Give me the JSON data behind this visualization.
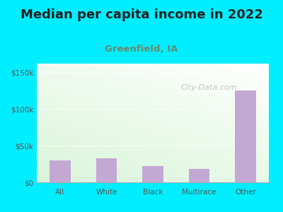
{
  "title": "Median per capita income in 2022",
  "subtitle": "Greenfield, IA",
  "categories": [
    "All",
    "White",
    "Black",
    "Multirace",
    "Other"
  ],
  "values": [
    30000,
    33000,
    22000,
    18000,
    125000
  ],
  "bar_color": "#c4a8d4",
  "title_fontsize": 13,
  "subtitle_fontsize": 9.5,
  "subtitle_color": "#6a8a6a",
  "title_color": "#222222",
  "ylabel_ticks": [
    0,
    50000,
    100000,
    150000
  ],
  "tick_labels_y": [
    "$0",
    "$50k",
    "$100k",
    "$150k"
  ],
  "ylim": [
    0,
    162000
  ],
  "bg_outer": "#00eeff",
  "watermark": "City-Data.com",
  "tick_label_color": "#555555"
}
